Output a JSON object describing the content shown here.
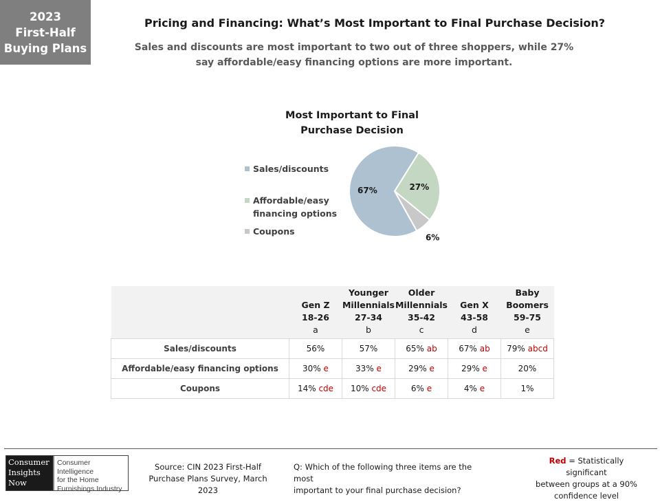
{
  "badge": {
    "lines": [
      "2023",
      "First-Half",
      "Buying Plans"
    ]
  },
  "header": {
    "title": "Pricing and Financing: What’s Most Important to Final Purchase Decision?",
    "subtitle_lines": [
      "Sales and discounts are most important to two out of three shoppers, while 27%",
      "say affordable/easy financing options are more important."
    ]
  },
  "chart_data": {
    "type": "pie",
    "title_lines": [
      "Most Important to Final",
      "Purchase Decision"
    ],
    "legend_position": "left",
    "slices": [
      {
        "label": "Sales/discounts",
        "value": 67,
        "display": "67%",
        "color": "#adc1d0"
      },
      {
        "label": "Affordable/easy financing options",
        "legend_lines": [
          "Affordable/easy",
          "financing options"
        ],
        "value": 27,
        "display": "27%",
        "color": "#c4d7c3"
      },
      {
        "label": "Coupons",
        "value": 6,
        "display": "6%",
        "color": "#c8c8c8"
      }
    ]
  },
  "table": {
    "columns": [
      {
        "lines": [
          "Gen Z",
          "18-26",
          "a"
        ]
      },
      {
        "lines": [
          "Younger",
          "Millennials",
          "27-34",
          "b"
        ]
      },
      {
        "lines": [
          "Older",
          "Millennials",
          "35-42",
          "c"
        ]
      },
      {
        "lines": [
          "Gen X",
          "43-58",
          "d"
        ]
      },
      {
        "lines": [
          "Baby",
          "Boomers",
          "59-75",
          "e"
        ]
      }
    ],
    "rows": [
      {
        "label": "Sales/discounts",
        "cells": [
          {
            "value": "56%",
            "sig": ""
          },
          {
            "value": "57%",
            "sig": ""
          },
          {
            "value": "65%",
            "sig": "ab"
          },
          {
            "value": "67%",
            "sig": "ab"
          },
          {
            "value": "79%",
            "sig": "abcd"
          }
        ]
      },
      {
        "label": "Affordable/easy financing options",
        "cells": [
          {
            "value": "30%",
            "sig": "e"
          },
          {
            "value": "33%",
            "sig": "e"
          },
          {
            "value": "29%",
            "sig": "e"
          },
          {
            "value": "29%",
            "sig": "e"
          },
          {
            "value": "20%",
            "sig": ""
          }
        ]
      },
      {
        "label": "Coupons",
        "cells": [
          {
            "value": "14%",
            "sig": "cde"
          },
          {
            "value": "10%",
            "sig": "cde"
          },
          {
            "value": "6%",
            "sig": "e"
          },
          {
            "value": "4%",
            "sig": "e"
          },
          {
            "value": "1%",
            "sig": ""
          }
        ]
      }
    ]
  },
  "footer": {
    "logo_left_lines": [
      "Consumer",
      "Insights",
      "Now"
    ],
    "logo_right_lines": [
      "Consumer Intelligence",
      "for the Home",
      "Furnishings Industry"
    ],
    "source_lines": [
      "Source: CIN 2023 First-Half",
      "Purchase Plans Survey, March 2023"
    ],
    "question_lines": [
      "Q: Which of the following three items are the most",
      "important to your final purchase decision?"
    ],
    "note_red": "Red",
    "note_rest_lines": [
      " = Statistically significant",
      "between groups at a 90%",
      "confidence level"
    ]
  }
}
